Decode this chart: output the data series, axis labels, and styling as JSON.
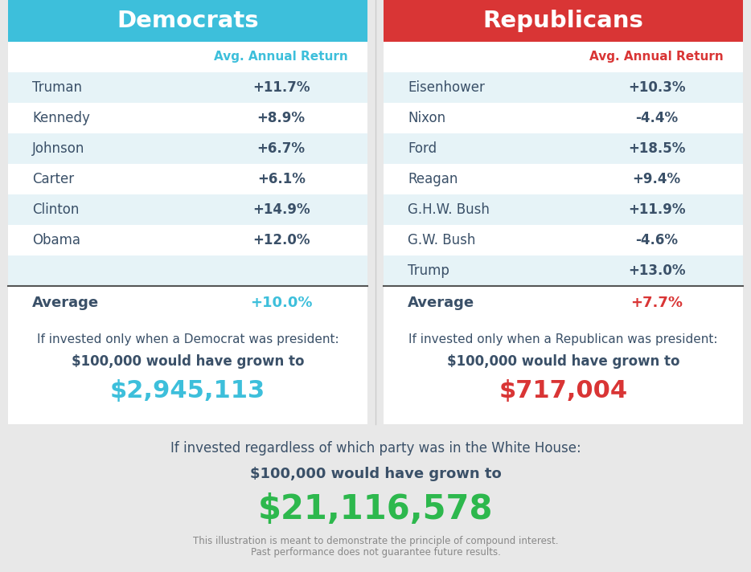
{
  "dem_header": "Democrats",
  "rep_header": "Republicans",
  "col_header": "Avg. Annual Return",
  "dem_color": "#3dbfdb",
  "rep_color": "#d93535",
  "dem_presidents": [
    "Truman",
    "Kennedy",
    "Johnson",
    "Carter",
    "Clinton",
    "Obama"
  ],
  "dem_returns": [
    "+11.7%",
    "+8.9%",
    "+6.7%",
    "+6.1%",
    "+14.9%",
    "+12.0%"
  ],
  "rep_presidents": [
    "Eisenhower",
    "Nixon",
    "Ford",
    "Reagan",
    "G.H.W. Bush",
    "G.W. Bush",
    "Trump"
  ],
  "rep_returns": [
    "+10.3%",
    "-4.4%",
    "+18.5%",
    "+9.4%",
    "+11.9%",
    "-4.6%",
    "+13.0%"
  ],
  "dem_avg_label": "Average",
  "dem_avg_val": "+10.0%",
  "rep_avg_label": "Average",
  "rep_avg_val": "+7.7%",
  "dem_invest_line1": "If invested only when a Democrat was president:",
  "dem_invest_line2": "$100,000 would have grown to",
  "dem_invest_amount": "$2,945,113",
  "rep_invest_line1": "If invested only when a Republican was president:",
  "rep_invest_line2": "$100,000 would have grown to",
  "rep_invest_amount": "$717,004",
  "combined_line1": "If invested regardless of which party was in the White House:",
  "combined_line2": "$100,000 would have grown to",
  "combined_amount": "$21,116,578",
  "disclaimer_line1": "This illustration is meant to demonstrate the principle of compound interest.",
  "disclaimer_line2": "Past performance does not guarantee future results.",
  "bg_color": "#e8e8e8",
  "table_bg": "#ffffff",
  "row_alt_color": "#e6f3f7",
  "name_text_color": "#3a5068",
  "dem_return_text_color": "#3a5068",
  "rep_return_text_color": "#3a5068",
  "dem_col_header_color": "#3dbfdb",
  "rep_col_header_color": "#d93535",
  "avg_name_color": "#3a5068",
  "avg_val_dem_color": "#3dbfdb",
  "avg_val_rep_color": "#d93535",
  "invest_text_color": "#3a5068",
  "invest_amount_dem_color": "#3dbfdb",
  "invest_amount_rep_color": "#d93535",
  "combined_text_color": "#3a5068",
  "combined_amount_color": "#2db84d",
  "disclaimer_color": "#888888",
  "separator_color": "#555555"
}
